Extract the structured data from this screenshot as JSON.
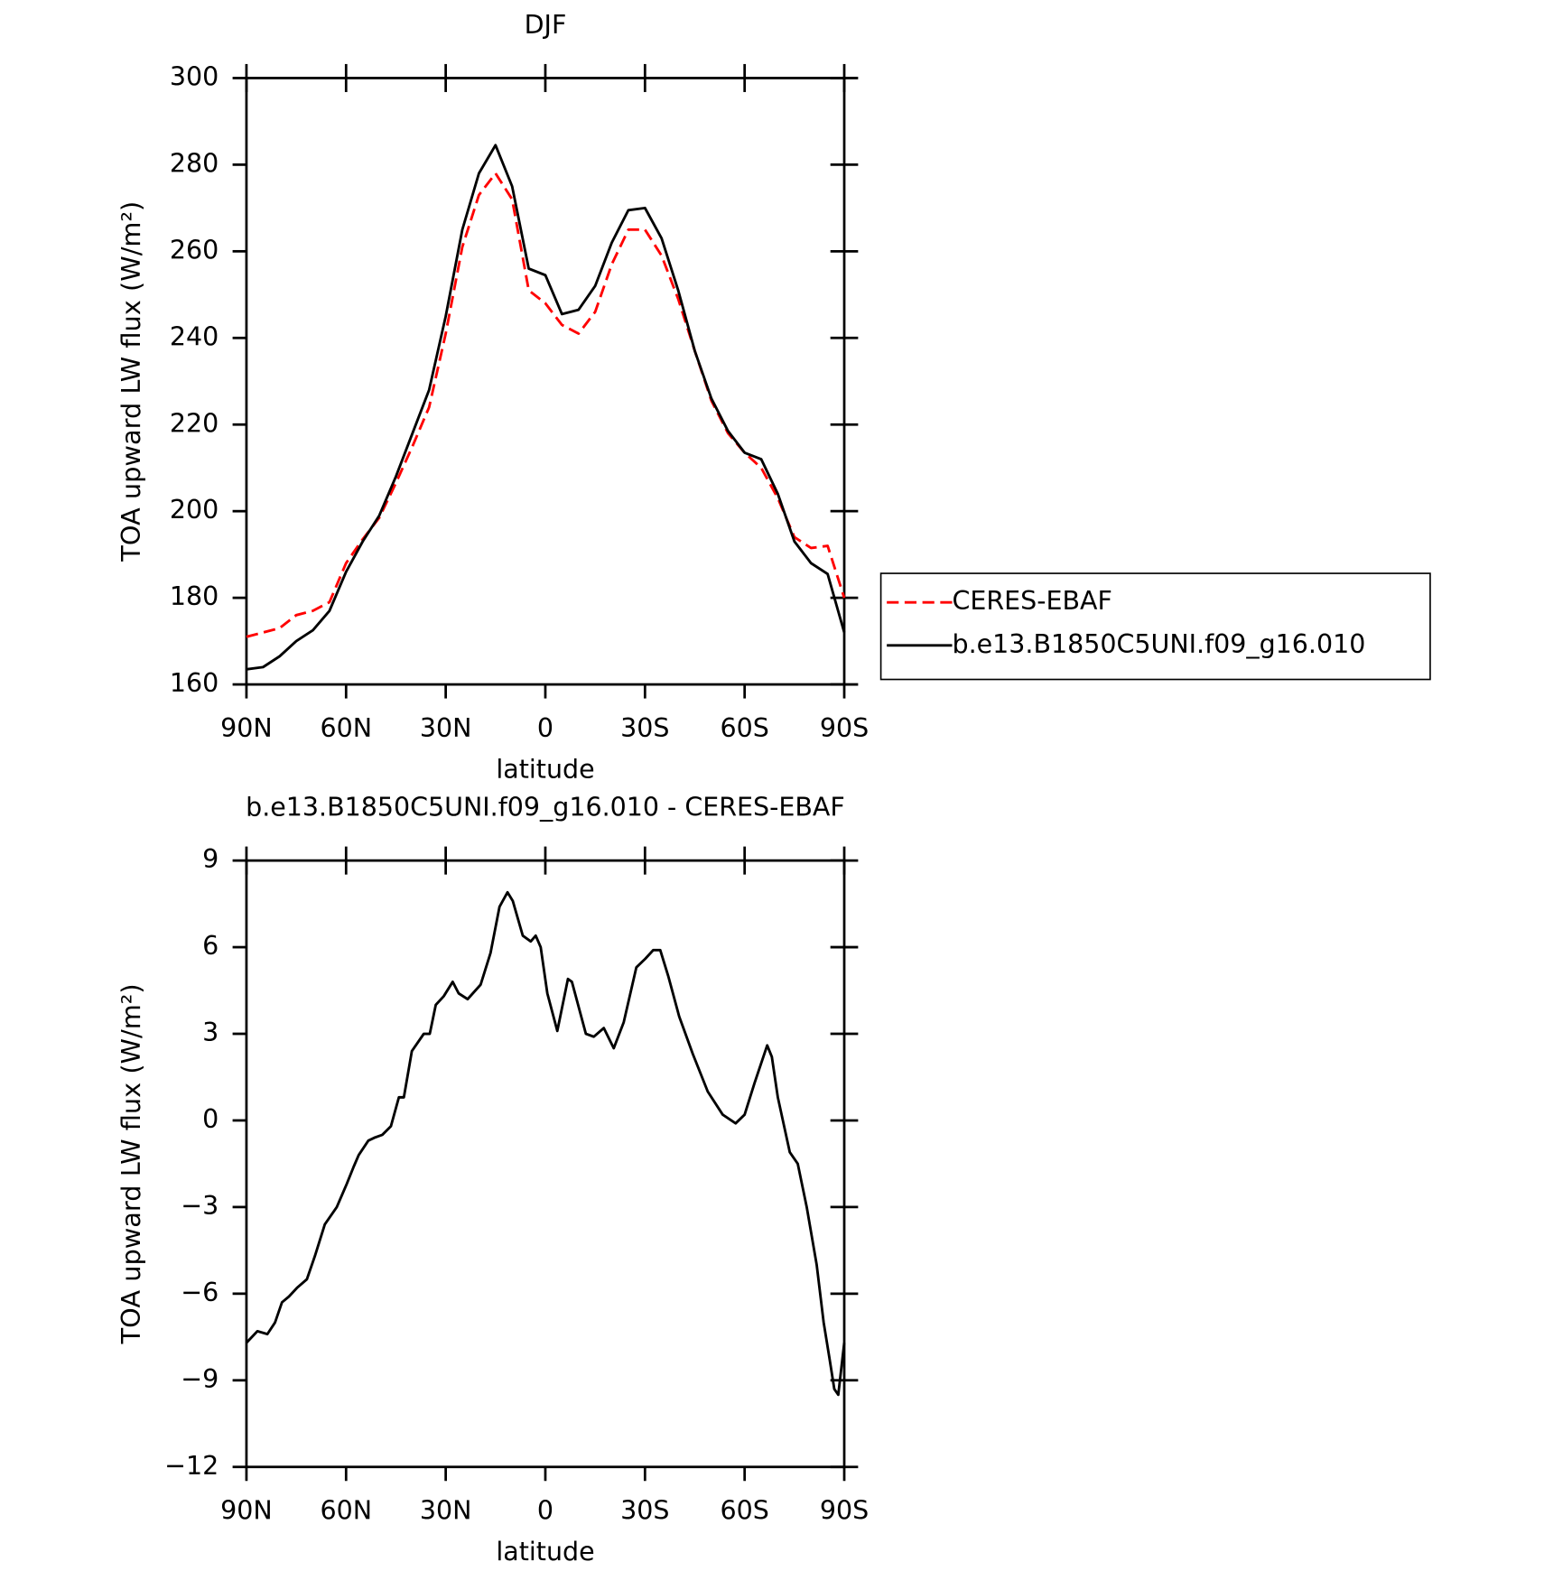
{
  "chart_data": [
    {
      "type": "line",
      "title": "DJF",
      "xlabel": "latitude",
      "ylabel": "TOA upward LW flux (W/m²)",
      "x": [
        90,
        85,
        80,
        75,
        70,
        65,
        60,
        55,
        50,
        45,
        40,
        35,
        30,
        25,
        20,
        15,
        10,
        5,
        0,
        -5,
        -10,
        -15,
        -20,
        -25,
        -30,
        -35,
        -40,
        -45,
        -50,
        -55,
        -60,
        -65,
        -70,
        -75,
        -80,
        -85,
        -90
      ],
      "series": [
        {
          "name": "CERES-EBAF",
          "color": "#ff0000",
          "dashed": true,
          "values": [
            171,
            172,
            173,
            176,
            177,
            179,
            188,
            193.5,
            198.5,
            206.5,
            215,
            224,
            241,
            261,
            273,
            278,
            272,
            251,
            248,
            243,
            241,
            246,
            257,
            265,
            265,
            259,
            249,
            237,
            225.5,
            218,
            213.5,
            210,
            203,
            194,
            191.5,
            192,
            180
          ]
        },
        {
          "name": "b.e13.B1850C5UNI.f09_g16.010",
          "color": "#000000",
          "dashed": false,
          "values": [
            163.5,
            164,
            166.5,
            170,
            172.5,
            177,
            186,
            193,
            199,
            208,
            218,
            228,
            245,
            265,
            278,
            284.5,
            275,
            256,
            254.5,
            245.5,
            246.5,
            252,
            262,
            269.5,
            270,
            263,
            251,
            237,
            226,
            218.5,
            213.5,
            212,
            204,
            193,
            188,
            185.5,
            172
          ]
        }
      ],
      "xlim": [
        90,
        -90
      ],
      "xticks": [
        {
          "value": 90,
          "label": "90N"
        },
        {
          "value": 60,
          "label": "60N"
        },
        {
          "value": 30,
          "label": "30N"
        },
        0,
        {
          "value": -30,
          "label": "30S"
        },
        {
          "value": -60,
          "label": "60S"
        },
        {
          "value": -90,
          "label": "90S"
        }
      ],
      "ylim": [
        160,
        300
      ],
      "yticks": [
        160,
        180,
        200,
        220,
        240,
        260,
        280,
        300
      ],
      "legend": "right"
    },
    {
      "type": "line",
      "title": "b.e13.B1850C5UNI.f09_g16.010 - CERES-EBAF",
      "xlabel": "latitude",
      "ylabel": "TOA upward LW flux (W/m²)",
      "x": [
        90,
        86.7,
        83.7,
        81.4,
        79.3,
        77.2,
        74.8,
        71.8,
        69.4,
        66.4,
        62.8,
        59.8,
        57.7,
        56.2,
        53.3,
        51.5,
        49.1,
        46.5,
        44.1,
        42.6,
        40.2,
        36.6,
        34.8,
        33.0,
        30.6,
        27.9,
        26.1,
        23.4,
        19.5,
        16.5,
        13.8,
        11.4,
        9.8,
        6.8,
        4.4,
        2.9,
        1.4,
        -0.6,
        -3.6,
        -6.8,
        -8.0,
        -12.2,
        -14.6,
        -17.6,
        -20.6,
        -23.6,
        -27.4,
        -30.1,
        -32.5,
        -34.6,
        -37.0,
        -40.3,
        -44.4,
        -48.9,
        -53.4,
        -57.3,
        -60.0,
        -63.0,
        -66.8,
        -68.2,
        -70.0,
        -73.6,
        -76.0,
        -78.7,
        -81.7,
        -83.8,
        -85.5,
        -87.0,
        -88.2,
        -90
      ],
      "series": [
        {
          "color": "#000000",
          "dashed": false,
          "values": [
            -7.7,
            -7.3,
            -7.4,
            -7.0,
            -6.3,
            -6.1,
            -5.8,
            -5.5,
            -4.7,
            -3.6,
            -3.0,
            -2.2,
            -1.6,
            -1.2,
            -0.7,
            -0.6,
            -0.5,
            -0.2,
            0.8,
            0.8,
            2.4,
            3.0,
            3.0,
            4.0,
            4.3,
            4.8,
            4.4,
            4.2,
            4.7,
            5.8,
            7.4,
            7.9,
            7.6,
            6.4,
            6.2,
            6.4,
            6.0,
            4.4,
            3.1,
            4.9,
            4.8,
            3.0,
            2.9,
            3.2,
            2.5,
            3.4,
            5.3,
            5.6,
            5.9,
            5.9,
            5.0,
            3.6,
            2.3,
            1.0,
            0.2,
            -0.1,
            0.2,
            1.3,
            2.6,
            2.2,
            0.8,
            -1.1,
            -1.5,
            -3.0,
            -5.0,
            -7.0,
            -8.2,
            -9.3,
            -9.5,
            -7.7
          ]
        }
      ],
      "xlim": [
        90,
        -90
      ],
      "xticks": [
        {
          "value": 90,
          "label": "90N"
        },
        {
          "value": 60,
          "label": "60N"
        },
        {
          "value": 30,
          "label": "30N"
        },
        0,
        {
          "value": -30,
          "label": "30S"
        },
        {
          "value": -60,
          "label": "60S"
        },
        {
          "value": -90,
          "label": "90S"
        }
      ],
      "ylim": [
        -12,
        9
      ],
      "yticks": [
        {
          "value": -12,
          "label": "−12"
        },
        {
          "value": -9,
          "label": "−9"
        },
        {
          "value": -6,
          "label": "−6"
        },
        {
          "value": -3,
          "label": "−3"
        },
        0,
        3,
        6,
        9
      ]
    }
  ]
}
